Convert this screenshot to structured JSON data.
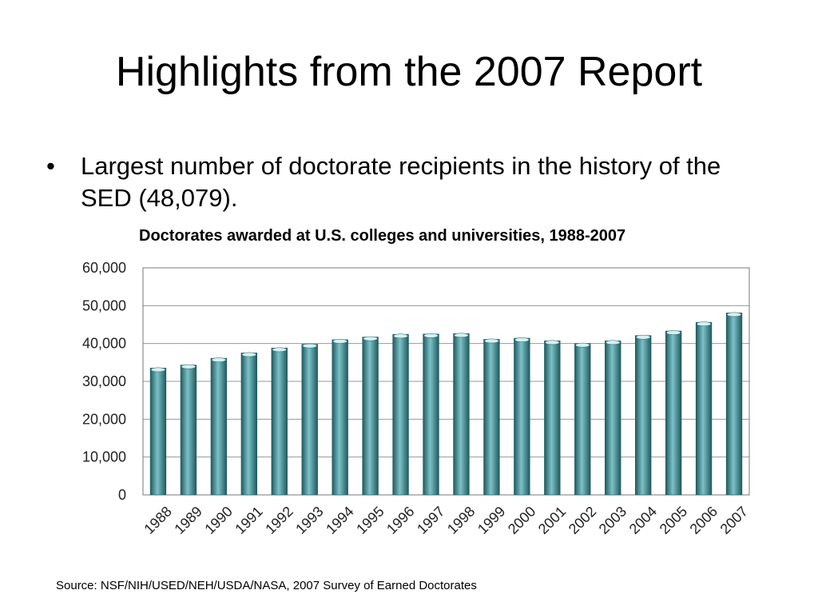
{
  "slide": {
    "title": "Highlights from the 2007 Report",
    "bullet": "Largest number of doctorate recipients in the history of the SED (48,079)."
  },
  "colors": {
    "bar": "#3d8a90",
    "bar_light": "#7cc2c7",
    "bar_dark": "#1f5a5f",
    "grid": "#9a9a9a"
  },
  "chart_data": {
    "type": "bar",
    "title": "Doctorates awarded at U.S. colleges and universities, 1988-2007",
    "xlabel": "",
    "ylabel": "",
    "categories": [
      "1988",
      "1989",
      "1990",
      "1991",
      "1992",
      "1993",
      "1994",
      "1995",
      "1996",
      "1997",
      "1998",
      "1999",
      "2000",
      "2001",
      "2002",
      "2003",
      "2004",
      "2005",
      "2006",
      "2007"
    ],
    "values": [
      33500,
      34300,
      36100,
      37500,
      38800,
      39800,
      41000,
      41700,
      42400,
      42500,
      42600,
      41100,
      41400,
      40700,
      40000,
      40700,
      42100,
      43300,
      45600,
      48079
    ],
    "ylim": [
      0,
      60000
    ],
    "yticks": [
      0,
      10000,
      20000,
      30000,
      40000,
      50000,
      60000
    ],
    "ytick_labels": [
      "0",
      "10,000",
      "20,000",
      "30,000",
      "40,000",
      "50,000",
      "60,000"
    ],
    "grid": true,
    "legend": "none"
  },
  "source": "Source: NSF/NIH/USED/NEH/USDA/NASA, 2007 Survey of Earned Doctorates"
}
